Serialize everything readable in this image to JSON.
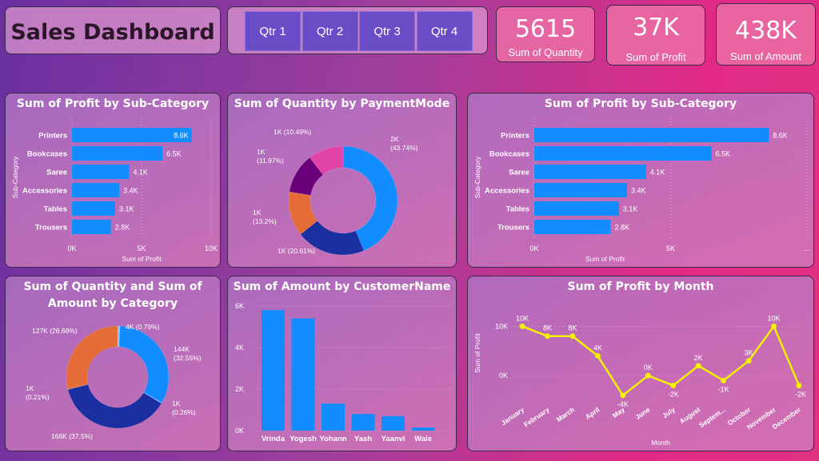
{
  "header": {
    "title": "Sales Dashboard"
  },
  "slicer": {
    "quarters": [
      "Qtr 1",
      "Qtr 2",
      "Qtr 3",
      "Qtr 4"
    ]
  },
  "kpis": [
    {
      "value": "5615",
      "label": "Sum of Quantity"
    },
    {
      "value": "37K",
      "label": "Sum of Profit"
    },
    {
      "value": "438K",
      "label": "Sum of Amount"
    }
  ],
  "panels": {
    "profit_subcat_small": "Sum of Profit by Sub-Category",
    "qty_payment": "Sum of Quantity by PaymentMode",
    "profit_subcat_large": "Sum of Profit by Sub-Category",
    "qty_amount_category_line1": "Sum of Quantity and Sum of",
    "qty_amount_category_line2": "Amount by Category",
    "amount_customer": "Sum of Amount by CustomerName",
    "profit_month": "Sum of Profit by Month"
  },
  "chart_data": [
    {
      "id": "profit_subcat_small",
      "type": "bar",
      "orientation": "horizontal",
      "title": "Sum of Profit by Sub-Category",
      "xlabel": "Sum of Profit",
      "ylabel": "Sub-Category",
      "categories": [
        "Printers",
        "Bookcases",
        "Saree",
        "Accessories",
        "Tables",
        "Trousers"
      ],
      "values": [
        8600,
        6500,
        4100,
        3400,
        3100,
        2800
      ],
      "data_labels": [
        "8.6K",
        "6.5K",
        "4.1K",
        "3.4K",
        "3.1K",
        "2.8K"
      ],
      "xticks": [
        "0K",
        "5K",
        "10K"
      ],
      "xlim": [
        0,
        10000
      ],
      "color": "#118dff"
    },
    {
      "id": "qty_payment",
      "type": "pie",
      "donut": true,
      "title": "Sum of Quantity by PaymentMode",
      "values": [
        43.74,
        20.61,
        13.2,
        11.97,
        10.49
      ],
      "data_labels": [
        "2K (43.74%)",
        "1K (20.61%)",
        "1K (13.2%)",
        "1K (11.97%)",
        "1K (10.49%)"
      ],
      "colors": [
        "#118dff",
        "#1c2fa0",
        "#e66c37",
        "#6b007b",
        "#e044a7"
      ]
    },
    {
      "id": "profit_subcat_large",
      "type": "bar",
      "orientation": "horizontal",
      "title": "Sum of Profit by Sub-Category",
      "xlabel": "Sum of Profit",
      "ylabel": "Sub-Category",
      "categories": [
        "Printers",
        "Bookcases",
        "Saree",
        "Accessories",
        "Tables",
        "Trousers"
      ],
      "values": [
        8600,
        6500,
        4100,
        3400,
        3100,
        2800
      ],
      "data_labels": [
        "8.6K",
        "6.5K",
        "4.1K",
        "3.4K",
        "3.1K",
        "2.8K"
      ],
      "xticks": [
        "0K",
        "5K",
        "..."
      ],
      "xlim": [
        0,
        10000
      ],
      "color": "#118dff"
    },
    {
      "id": "qty_amount_category",
      "type": "pie",
      "donut": true,
      "title": "Sum of Quantity and Sum of Amount by Category",
      "values": [
        0.79,
        32.55,
        0.26,
        37.5,
        0.21,
        28.68
      ],
      "data_labels": [
        "4K (0.79%)",
        "144K (32.55%)",
        "1K (0.26%)",
        "166K (37.5%)",
        "1K (0.21%)",
        "127K (28.68%)"
      ],
      "colors": [
        "#7fc6ff",
        "#118dff",
        "#5cb0ff",
        "#1c2fa0",
        "#c65a2e",
        "#e66c37"
      ]
    },
    {
      "id": "amount_customer",
      "type": "bar",
      "title": "Sum of Amount by CustomerName",
      "categories": [
        "Vrinda",
        "Yogesh",
        "Yohann",
        "Yash",
        "Yaanvi",
        "Wale"
      ],
      "values": [
        5800,
        5400,
        1300,
        800,
        700,
        150
      ],
      "yticks": [
        "0K",
        "2K",
        "4K",
        "6K"
      ],
      "ylim": [
        0,
        6000
      ],
      "color": "#118dff"
    },
    {
      "id": "profit_month",
      "type": "line",
      "title": "Sum of Profit by Month",
      "xlabel": "Month",
      "ylabel": "Sum of Profit",
      "categories": [
        "January",
        "February",
        "March",
        "April",
        "May",
        "June",
        "July",
        "August",
        "Septem...",
        "October",
        "November",
        "December"
      ],
      "values": [
        10000,
        8000,
        8000,
        4000,
        -4000,
        0,
        -2000,
        2000,
        -1000,
        3000,
        10000,
        -2000
      ],
      "data_labels": [
        "10K",
        "8K",
        "8K",
        "4K",
        "-4K",
        "0K",
        "-2K",
        "2K",
        "-1K",
        "3K",
        "10K",
        "-2K"
      ],
      "yticks": [
        "0K",
        "10K"
      ],
      "ylim": [
        -5000,
        12000
      ],
      "color": "#f3f000"
    }
  ]
}
